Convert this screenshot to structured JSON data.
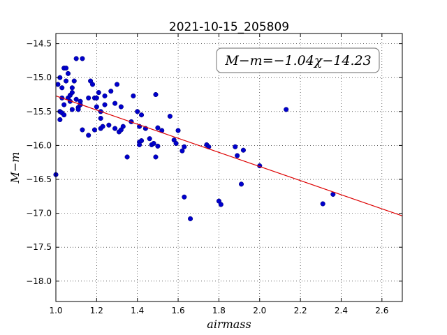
{
  "chart_data": {
    "type": "scatter",
    "title": "2021-10-15_205809",
    "xlabel": "airmass",
    "ylabel": "M−m",
    "annotation": "M−m=−1.04χ−14.23",
    "annotation_position": "top-right",
    "grid": true,
    "xlim": [
      1.0,
      2.7
    ],
    "ylim": [
      -18.3,
      -14.35
    ],
    "ydirection": "inverted",
    "xticks": [
      1.0,
      1.2,
      1.4,
      1.6,
      1.8,
      2.0,
      2.2,
      2.4,
      2.6
    ],
    "xtick_labels": [
      "1.0",
      "1.2",
      "1.4",
      "1.6",
      "1.8",
      "2.0",
      "2.2",
      "2.4",
      "2.6"
    ],
    "yticks": [
      -14.5,
      -15.0,
      -15.5,
      -16.0,
      -16.5,
      -17.0,
      -17.5,
      -18.0
    ],
    "ytick_labels": [
      "−14.5",
      "−15.0",
      "−15.5",
      "−16.0",
      "−16.5",
      "−17.0",
      "−17.5",
      "−18.0"
    ],
    "point_color": "#0000cc",
    "fit_color": "#dd0000",
    "fit": {
      "slope": -1.04,
      "intercept": -14.23,
      "x_range": [
        1.0,
        2.7
      ]
    },
    "x": [
      1.0,
      1.01,
      1.02,
      1.02,
      1.02,
      1.03,
      1.03,
      1.03,
      1.04,
      1.04,
      1.04,
      1.05,
      1.05,
      1.06,
      1.06,
      1.07,
      1.07,
      1.08,
      1.08,
      1.08,
      1.09,
      1.1,
      1.1,
      1.11,
      1.11,
      1.12,
      1.12,
      1.13,
      1.13,
      1.16,
      1.16,
      1.17,
      1.18,
      1.19,
      1.19,
      1.2,
      1.2,
      1.21,
      1.22,
      1.22,
      1.22,
      1.23,
      1.24,
      1.24,
      1.26,
      1.27,
      1.29,
      1.29,
      1.3,
      1.31,
      1.32,
      1.32,
      1.33,
      1.35,
      1.37,
      1.38,
      1.4,
      1.41,
      1.41,
      1.41,
      1.42,
      1.42,
      1.44,
      1.46,
      1.47,
      1.48,
      1.49,
      1.49,
      1.5,
      1.5,
      1.52,
      1.56,
      1.58,
      1.59,
      1.6,
      1.62,
      1.63,
      1.63,
      1.66,
      1.74,
      1.75,
      1.8,
      1.81,
      1.88,
      1.89,
      1.91,
      1.92,
      2.0,
      2.13,
      2.31,
      2.36
    ],
    "y": [
      -16.43,
      -15.1,
      -15.0,
      -15.5,
      -15.62,
      -15.15,
      -15.3,
      -15.52,
      -14.86,
      -15.4,
      -15.55,
      -14.86,
      -15.05,
      -14.94,
      -15.3,
      -15.35,
      -15.26,
      -15.15,
      -15.22,
      -15.47,
      -15.05,
      -14.72,
      -15.32,
      -15.44,
      -15.47,
      -15.35,
      -15.4,
      -14.72,
      -15.77,
      -15.85,
      -15.3,
      -15.05,
      -15.1,
      -15.3,
      -15.77,
      -15.3,
      -15.43,
      -15.22,
      -15.5,
      -15.6,
      -15.75,
      -15.72,
      -15.27,
      -15.4,
      -15.7,
      -15.2,
      -15.38,
      -15.75,
      -15.1,
      -15.8,
      -15.43,
      -15.77,
      -15.72,
      -16.17,
      -15.65,
      -15.27,
      -15.5,
      -15.72,
      -15.95,
      -15.99,
      -15.55,
      -15.93,
      -15.75,
      -15.9,
      -15.99,
      -15.97,
      -15.25,
      -16.17,
      -15.74,
      -16.01,
      -15.78,
      -15.57,
      -15.92,
      -15.97,
      -15.78,
      -16.08,
      -16.76,
      -16.02,
      -17.08,
      -15.99,
      -16.02,
      -16.82,
      -16.87,
      -16.02,
      -16.15,
      -16.57,
      -16.07,
      -16.3,
      -15.47,
      -16.86,
      -16.72
    ]
  }
}
